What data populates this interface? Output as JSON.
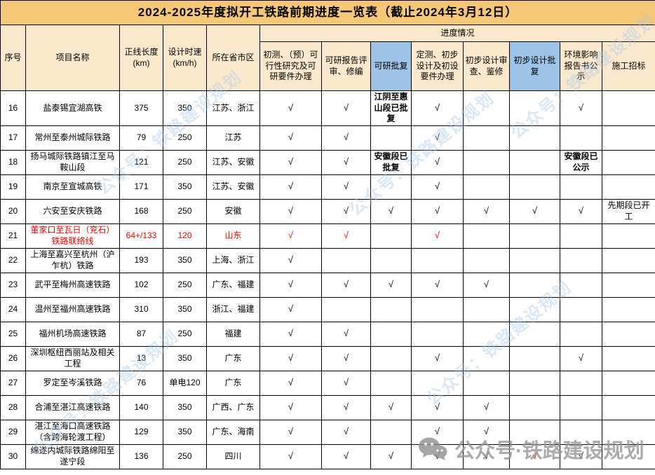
{
  "title": "2024-2025年度拟开工铁路前期进度一览表（截止2024年3月12日）",
  "columns": {
    "seq": "序号",
    "name": "项目名称",
    "length": "正线长度\n(km)",
    "speed": "设计时速\n(km/h)",
    "region": "所在省市区",
    "progress_group": "进度情况",
    "progress": [
      "初测、（预）可行性研究及可研要件办理",
      "可研报告评审、修编",
      "可研批复",
      "定测、初步设计及初设要件办理",
      "初步设计审查、鉴修",
      "初步设计批复",
      "环境影响报告书公示",
      "施工招标"
    ]
  },
  "check_mark": "√",
  "colors": {
    "title_bg": "#F7C778",
    "header_bg": "#FCE9CD",
    "highlight_bg": "#9DC3E6",
    "red": "#FF0000",
    "watermark_blue": "#A4C4E6",
    "watermark_grey": "#979797"
  },
  "rows": [
    {
      "seq": "16",
      "name": "盐泰锡宜湖高铁",
      "length": "375",
      "speed": "350",
      "region": "江苏、浙江",
      "progress": [
        "√",
        "√",
        "江阴至惠山段已批复",
        "√",
        "",
        "",
        "√",
        ""
      ],
      "bold": [
        2
      ]
    },
    {
      "seq": "17",
      "name": "常州至泰州城际铁路",
      "length": "79",
      "speed": "250",
      "region": "江苏",
      "progress": [
        "√",
        "√",
        "",
        "√",
        "",
        "",
        "",
        ""
      ]
    },
    {
      "seq": "18",
      "name": "扬马城际铁路镇江至马鞍山段",
      "length": "121",
      "speed": "250",
      "region": "江苏、安徽",
      "progress": [
        "√",
        "√",
        "安徽段已批复",
        "√",
        "",
        "",
        "安徽段已公示",
        ""
      ],
      "bold": [
        2,
        6
      ]
    },
    {
      "seq": "19",
      "name": "南京至宣城高铁",
      "length": "171",
      "speed": "350",
      "region": "江苏、安徽",
      "progress": [
        "√",
        "√",
        "",
        "√",
        "",
        "",
        "",
        ""
      ]
    },
    {
      "seq": "20",
      "name": "六安至安庆铁路",
      "length": "168",
      "speed": "250",
      "region": "安徽",
      "progress": [
        "√",
        "√",
        "√",
        "√",
        "√",
        "√",
        "√",
        "先期段已开工"
      ]
    },
    {
      "seq": "21",
      "name": "董家口至瓦日（兖石）铁路联络线",
      "length": "64+/133",
      "speed": "120",
      "region": "山东",
      "progress": [
        "√",
        "√",
        "",
        "√",
        "",
        "",
        "",
        ""
      ],
      "red": true
    },
    {
      "seq": "22",
      "name": "上海至嘉兴至杭州（沪乍杭）铁路",
      "length": "193",
      "speed": "350",
      "region": "上海、浙江",
      "progress": [
        "√",
        "",
        "",
        "",
        "",
        "",
        "",
        ""
      ]
    },
    {
      "seq": "23",
      "name": "武平至梅州高速铁路",
      "length": "102",
      "speed": "250",
      "region": "广东、福建",
      "progress": [
        "√",
        "√",
        "√",
        "√",
        "√",
        "",
        "",
        ""
      ]
    },
    {
      "seq": "24",
      "name": "温州至福州高速铁路",
      "length": "310",
      "speed": "350",
      "region": "浙江、福建",
      "progress": [
        "√",
        "",
        "",
        "",
        "",
        "",
        "",
        ""
      ]
    },
    {
      "seq": "25",
      "name": "福州机场高速铁路",
      "length": "87",
      "speed": "250",
      "region": "福建",
      "progress": [
        "√",
        "√",
        "",
        "",
        "",
        "",
        "",
        ""
      ]
    },
    {
      "seq": "26",
      "name": "深圳枢纽西丽站及相关工程",
      "length": "13",
      "speed": "350",
      "region": "广东",
      "progress": [
        "√",
        "√",
        "",
        "√",
        "",
        "",
        "√",
        ""
      ]
    },
    {
      "seq": "27",
      "name": "罗定至岑溪铁路",
      "length": "76",
      "speed": "单电120",
      "region": "广东",
      "progress": [
        "√",
        "√",
        "",
        "",
        "",
        "",
        "",
        ""
      ]
    },
    {
      "seq": "28",
      "name": "合浦至湛江高速铁路",
      "length": "140",
      "speed": "350",
      "region": "广西、广东",
      "progress": [
        "√",
        "√",
        "√",
        "√",
        "√",
        "",
        "",
        ""
      ]
    },
    {
      "seq": "29",
      "name": "湛江至海口高速铁路（含跨海轮渡工程）",
      "length": "129",
      "speed": "350",
      "region": "广东、海南",
      "progress": [
        "√",
        "√",
        "",
        "√",
        "√",
        "",
        "",
        ""
      ]
    },
    {
      "seq": "30",
      "name": "绵遂内城际铁路绵阳至遂宁段",
      "length": "136",
      "speed": "250",
      "region": "四川",
      "progress": [
        "√",
        "√",
        "√",
        "√",
        "√",
        "√",
        "√",
        ""
      ],
      "red_progress": [
        5
      ]
    }
  ],
  "watermark": {
    "diagonal": "公众号：铁路建设规划",
    "bottom": "公众号·铁路建设规划"
  }
}
